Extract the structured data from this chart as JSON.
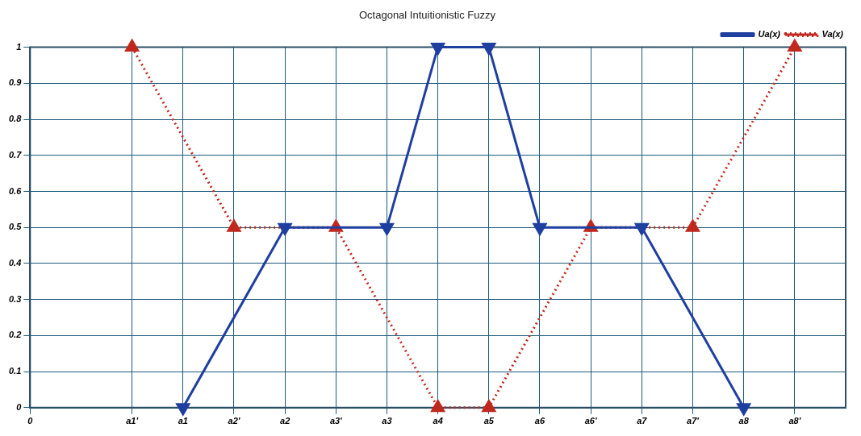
{
  "chart_data": {
    "type": "line",
    "title": "Octagonal Intuitionistic Fuzzy",
    "categories": [
      "0",
      null,
      "a1'",
      "a1",
      "a2'",
      "a2",
      "a3'",
      "a3",
      "a4",
      "a5",
      "a6",
      "a6'",
      "a7",
      "a7'",
      "a8",
      "a8'",
      null
    ],
    "ylim": [
      0,
      1
    ],
    "yticks": [
      0,
      0.1,
      0.2,
      0.3,
      0.4,
      0.5,
      0.6,
      0.7,
      0.8,
      0.9,
      1
    ],
    "grid": true,
    "legend": "top right",
    "marker": "triangle",
    "series": [
      {
        "name": "Ua(x)",
        "color": "#1f3fa0",
        "line_style": "solid",
        "values": [
          null,
          null,
          null,
          0,
          null,
          0.5,
          null,
          0.5,
          1,
          1,
          0.5,
          null,
          0.5,
          null,
          0,
          null,
          null
        ]
      },
      {
        "name": "Va(x)",
        "color": "#c0281e",
        "line_style": "dotted",
        "values": [
          null,
          null,
          1,
          null,
          0.5,
          null,
          0.5,
          null,
          0,
          0,
          null,
          0.5,
          null,
          0.5,
          null,
          1,
          null
        ]
      }
    ]
  }
}
